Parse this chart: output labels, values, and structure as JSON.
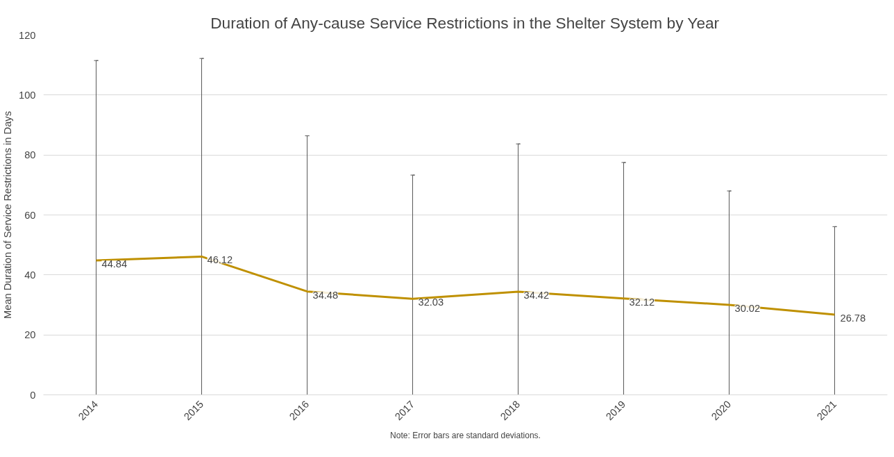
{
  "chart_data": {
    "type": "line",
    "title": "Duration of Any-cause Service Restrictions in the Shelter System by Year",
    "ylabel": "Mean Duration of Service Restrictions in Days",
    "categories": [
      "2014",
      "2015",
      "2016",
      "2017",
      "2018",
      "2019",
      "2020",
      "2021"
    ],
    "series": [
      {
        "color": "#bf9000",
        "values": [
          44.84,
          46.12,
          34.48,
          32.03,
          34.42,
          32.12,
          30.02,
          26.78
        ],
        "errors": [
          [
            0,
            111.5
          ],
          [
            0,
            112.2
          ],
          [
            0,
            86.4
          ],
          [
            0,
            73.3
          ],
          [
            0,
            83.7
          ],
          [
            0,
            77.5
          ],
          [
            0,
            68.0
          ],
          [
            0,
            56.1
          ]
        ]
      }
    ],
    "ylim": [
      0,
      120
    ],
    "yticks": [
      0,
      20,
      40,
      60,
      80,
      100,
      120
    ],
    "grid": "y",
    "data_labels": true,
    "marker": "none",
    "line_style": "solid",
    "annotations": [
      "Note: Error bars are standard deviations."
    ]
  }
}
